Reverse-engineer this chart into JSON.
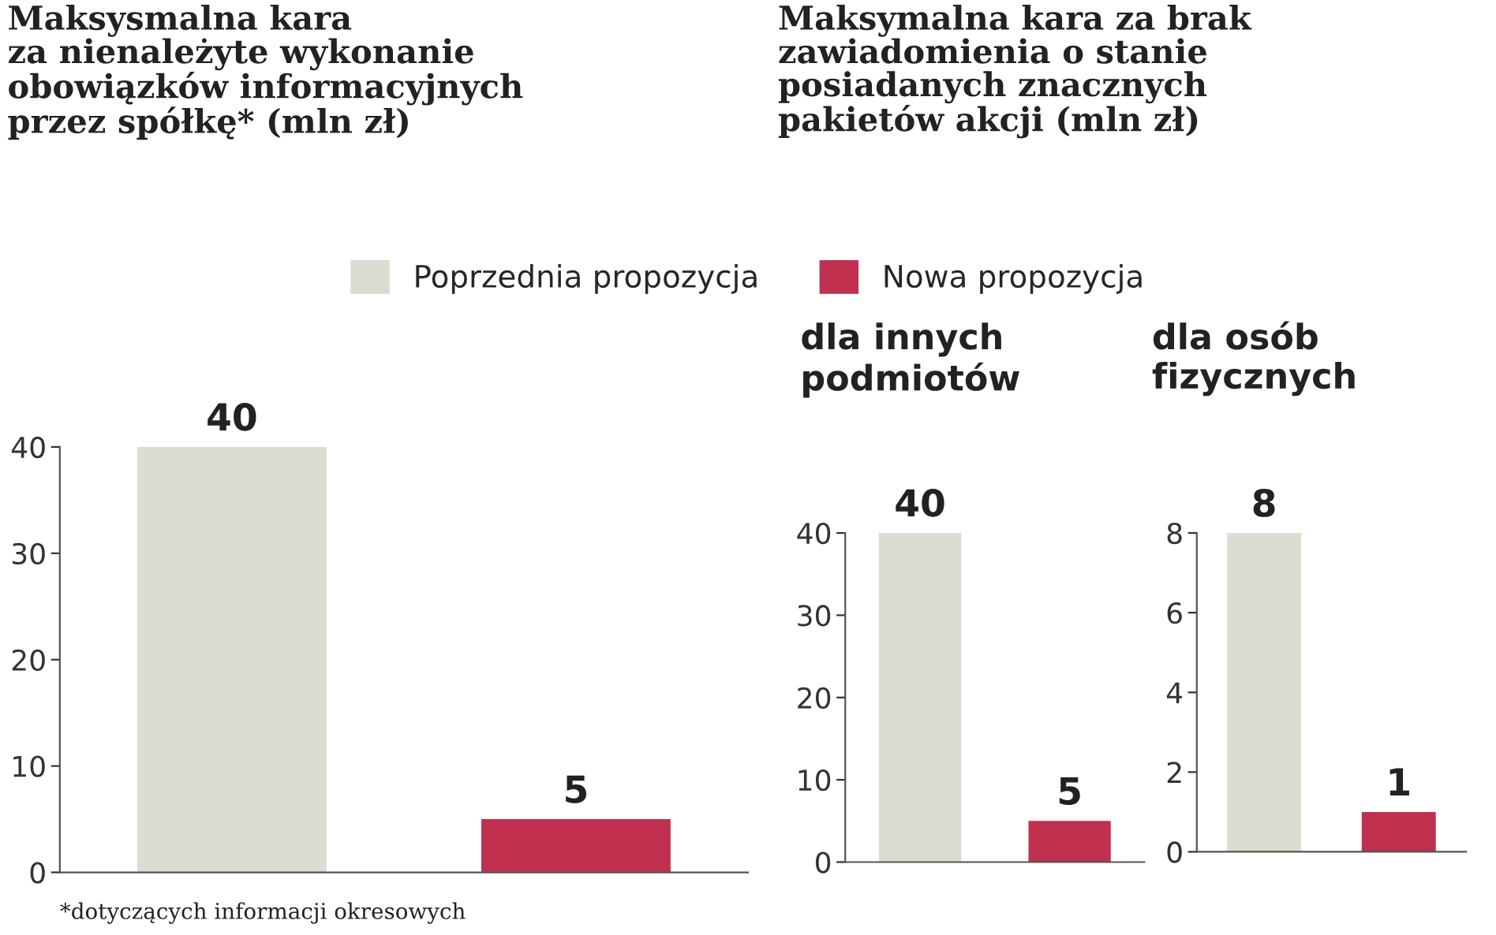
{
  "chart_data": [
    {
      "type": "bar",
      "title": "Maksysmalna kara\nza nienależyte wykonanie\nobowiązków informacyjnych\nprzez spółkę* (mln zł)",
      "categories": [
        null,
        null
      ],
      "series": [
        {
          "name": "Poprzednia propozycja",
          "color": "#dcdcd0",
          "values": [
            40,
            null
          ]
        },
        {
          "name": "Nowa propozycja",
          "color": "#c0304f",
          "values": [
            null,
            5
          ]
        }
      ],
      "ylim": [
        0,
        40
      ],
      "yticks": [
        0,
        10,
        20,
        30,
        40
      ],
      "grid": false,
      "legend": "top",
      "data_labels": true,
      "annotations": [
        "*dotyczących informacji okresowych"
      ]
    },
    {
      "type": "bar",
      "title": "Maksymalna kara za brak\nzawiadomienia o stanie\nposiadanych znacznych\npakietów akcji (mln zł)",
      "subtitle": "dla innych\npodmiotów",
      "categories": [
        null,
        null
      ],
      "values": [
        40,
        5
      ],
      "colors": [
        "#dcdcd0",
        "#c0304f"
      ],
      "ylim": [
        0,
        40
      ],
      "yticks": [
        0,
        10,
        20,
        30,
        40
      ],
      "grid": false,
      "data_labels": true
    },
    {
      "type": "bar",
      "subtitle": "dla osób\nfizycznych",
      "categories": [
        null,
        null
      ],
      "values": [
        8,
        1
      ],
      "colors": [
        "#dcdcd0",
        "#c0304f"
      ],
      "ylim": [
        0,
        8
      ],
      "yticks": [
        0,
        2,
        4,
        6,
        8
      ],
      "grid": false,
      "data_labels": true
    }
  ]
}
